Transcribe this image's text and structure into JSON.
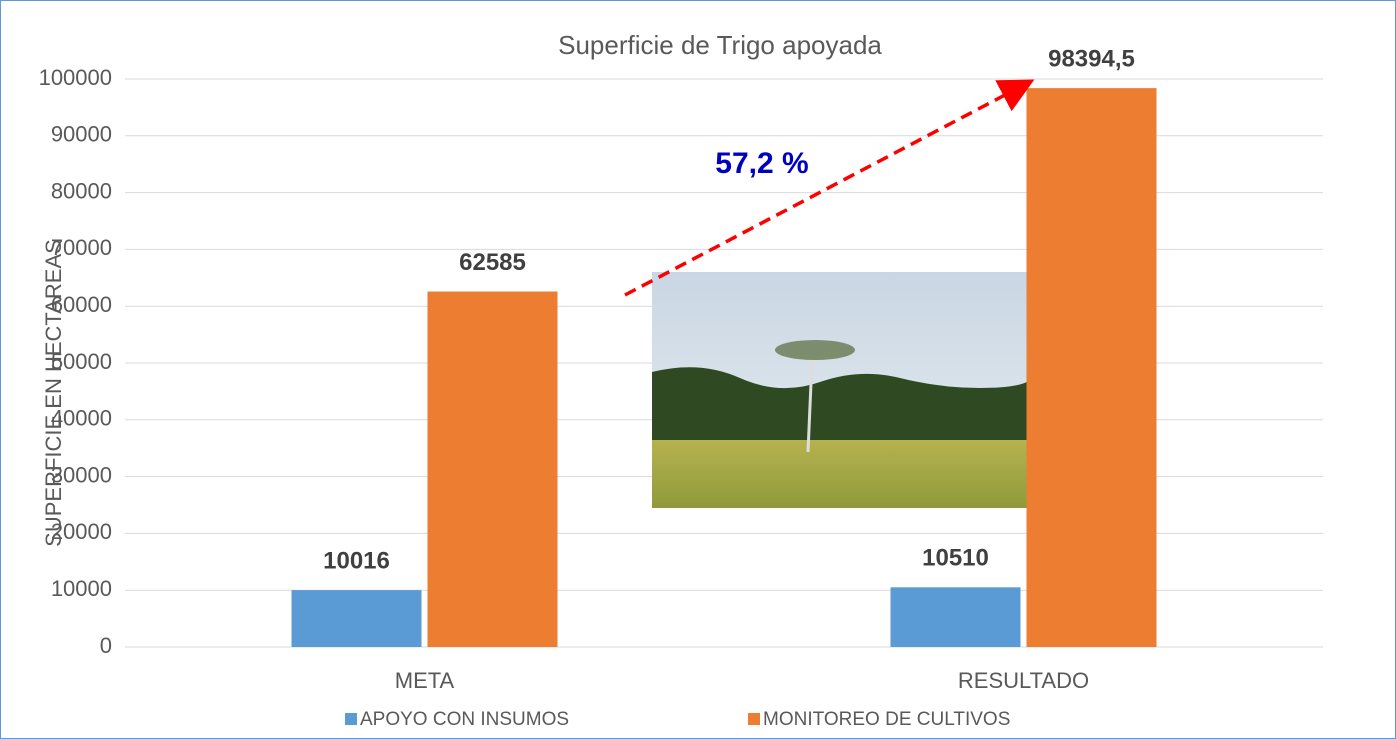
{
  "chart_data": {
    "type": "bar",
    "title": "Superficie de Trigo apoyada",
    "y_label": "SUPERFICIE EN HECTAREAS",
    "categories": [
      "META",
      "RESULTADO"
    ],
    "series": [
      {
        "name": "APOYO CON INSUMOS",
        "color": "#5b9bd5",
        "values": [
          10016,
          10510
        ],
        "value_labels": [
          "10016",
          "10510"
        ]
      },
      {
        "name": "MONITOREO DE CULTIVOS",
        "color": "#ed7d31",
        "values": [
          62585,
          98394.5
        ],
        "value_labels": [
          "62585",
          "98394,5"
        ]
      }
    ],
    "annotation": "57,2 %",
    "ylim": [
      0,
      100000
    ],
    "yticks": [
      0,
      10000,
      20000,
      30000,
      40000,
      50000,
      60000,
      70000,
      80000,
      90000,
      100000
    ],
    "grid": true,
    "legend": "bottom"
  }
}
